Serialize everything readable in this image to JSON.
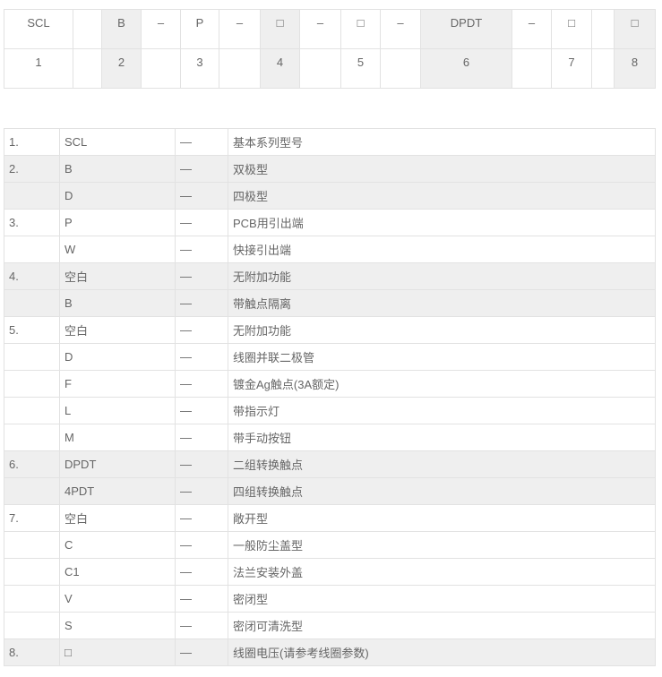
{
  "top": {
    "rows": [
      [
        "SCL",
        null,
        "B",
        "–",
        "P",
        "–",
        "□",
        "–",
        "□",
        "–",
        "DPDT",
        "–",
        "□",
        null,
        "□"
      ],
      [
        "1",
        null,
        "2",
        null,
        "3",
        null,
        "4",
        null,
        "5",
        null,
        "6",
        null,
        "7",
        null,
        "8"
      ]
    ]
  },
  "table": {
    "rows": [
      [
        "1.",
        "SCL",
        "—",
        "基本系列型号"
      ],
      [
        "2.",
        "B",
        "—",
        "双极型"
      ],
      [
        null,
        "D",
        "—",
        "四极型"
      ],
      [
        "3.",
        "P",
        "—",
        "PCB用引出端"
      ],
      [
        null,
        "W",
        "—",
        "快接引出端"
      ],
      [
        "4.",
        "空白",
        "—",
        "无附加功能"
      ],
      [
        null,
        "B",
        "—",
        "带触点隔离"
      ],
      [
        "5.",
        "空白",
        "—",
        "无附加功能"
      ],
      [
        null,
        "D",
        "—",
        "线圈并联二极管"
      ],
      [
        null,
        "F",
        "—",
        "镀金Ag触点(3A额定)"
      ],
      [
        null,
        "L",
        "—",
        "带指示灯"
      ],
      [
        null,
        "M",
        "—",
        "带手动按钮"
      ],
      [
        "6.",
        "DPDT",
        "—",
        "二组转换触点"
      ],
      [
        null,
        "4PDT",
        "—",
        "四组转换触点"
      ],
      [
        "7.",
        "空白",
        "—",
        "敞开型"
      ],
      [
        null,
        "C",
        "—",
        "一般防尘盖型"
      ],
      [
        null,
        "C1",
        "—",
        "法兰安装外盖"
      ],
      [
        null,
        "V",
        "—",
        "密闭型"
      ],
      [
        null,
        "S",
        "—",
        "密闭可清洗型"
      ],
      [
        "8.",
        "□",
        "—",
        "线圈电压(请参考线圈参数)"
      ]
    ]
  }
}
